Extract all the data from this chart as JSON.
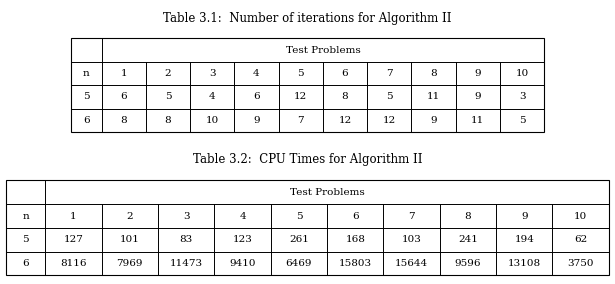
{
  "table1_title": "Table 3.1:  Number of iterations for Algorithm II",
  "table1_header_span": "Test Problems",
  "table1_col_headers": [
    "n",
    "1",
    "2",
    "3",
    "4",
    "5",
    "6",
    "7",
    "8",
    "9",
    "10"
  ],
  "table1_rows": [
    [
      "5",
      "6",
      "5",
      "4",
      "6",
      "12",
      "8",
      "5",
      "11",
      "9",
      "3"
    ],
    [
      "6",
      "8",
      "8",
      "10",
      "9",
      "7",
      "12",
      "12",
      "9",
      "11",
      "5"
    ]
  ],
  "table2_title": "Table 3.2:  CPU Times for Algorithm II",
  "table2_header_span": "Test Problems",
  "table2_col_headers": [
    "n",
    "1",
    "2",
    "3",
    "4",
    "5",
    "6",
    "7",
    "8",
    "9",
    "10"
  ],
  "table2_rows": [
    [
      "5",
      "127",
      "101",
      "83",
      "123",
      "261",
      "168",
      "103",
      "241",
      "194",
      "62"
    ],
    [
      "6",
      "8116",
      "7969",
      "11473",
      "9410",
      "6469",
      "15803",
      "15644",
      "9596",
      "13108",
      "3750"
    ]
  ],
  "bg_color": "#ffffff",
  "text_color": "#000000",
  "font_size": 7.5,
  "title_font_size": 8.5
}
